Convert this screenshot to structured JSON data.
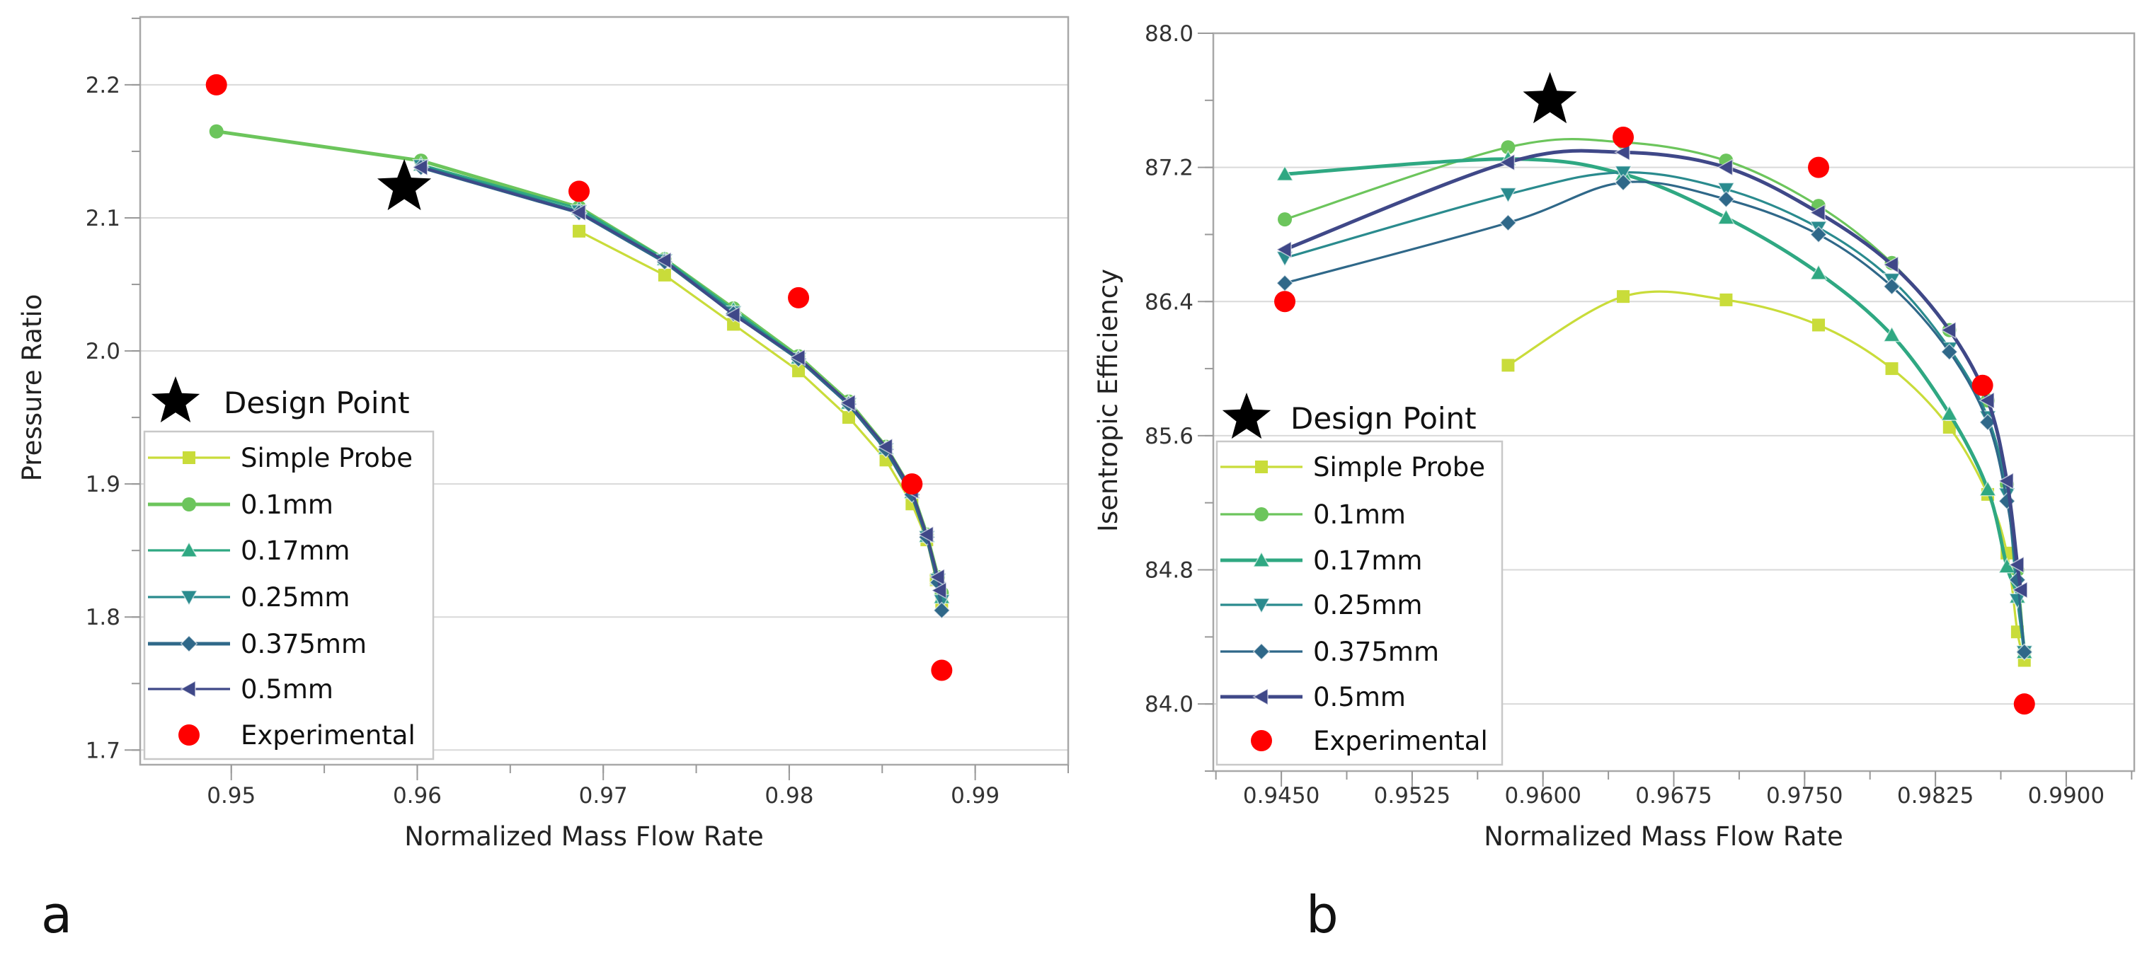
{
  "colors": {
    "Simple Probe": "#c9dc3a",
    "0.1mm": "#6cc55c",
    "0.17mm": "#2fa882",
    "0.25mm": "#2a8b8e",
    "0.375mm": "#2f6889",
    "0.5mm": "#3f4888",
    "Experimental": "#ff0000",
    "design": "#000000"
  },
  "chart_data": [
    {
      "panel_label": "a",
      "type": "line",
      "smooth": false,
      "xlabel": "Normalized Mass Flow Rate",
      "ylabel": "Pressure Ratio",
      "xlim": [
        0.9451,
        0.995
      ],
      "ylim": [
        1.689,
        2.251
      ],
      "xticks": [
        0.95,
        0.96,
        0.97,
        0.98,
        0.99
      ],
      "xtick_labels": [
        "0.95",
        "0.96",
        "0.97",
        "0.98",
        "0.99"
      ],
      "xminor": 0.005,
      "yticks": [
        1.7,
        1.8,
        1.9,
        2.0,
        2.1,
        2.2
      ],
      "ytick_labels": [
        "1.7",
        "1.8",
        "1.9",
        "2.0",
        "2.1",
        "2.2"
      ],
      "yminor": 0.05,
      "grid": "horizontal",
      "legend_position": "lower-left",
      "design_point": {
        "label": "Design Point",
        "x": 0.9593,
        "y": 2.123
      },
      "series": [
        {
          "name": "Simple Probe",
          "marker": "square",
          "bold": false,
          "x": [
            0.9687,
            0.9733,
            0.977,
            0.9805,
            0.9832,
            0.9852,
            0.9866,
            0.9874,
            0.9879,
            0.9882
          ],
          "y": [
            2.09,
            2.057,
            2.02,
            1.985,
            1.95,
            1.918,
            1.885,
            1.858,
            1.828,
            1.81
          ]
        },
        {
          "name": "0.1mm",
          "marker": "circle",
          "bold": true,
          "x": [
            0.9492,
            0.9602,
            0.9687,
            0.9733,
            0.977,
            0.9805,
            0.9832,
            0.9852,
            0.9866,
            0.9874,
            0.988,
            0.9882
          ],
          "y": [
            2.165,
            2.143,
            2.108,
            2.069,
            2.032,
            1.996,
            1.962,
            1.928,
            1.895,
            1.862,
            1.83,
            1.818
          ]
        },
        {
          "name": "0.17mm",
          "marker": "triangle-up",
          "bold": false,
          "x": [
            0.9602,
            0.9687,
            0.9733,
            0.977,
            0.9805,
            0.9832,
            0.9852,
            0.9866,
            0.9874,
            0.988,
            0.9882
          ],
          "y": [
            2.14,
            2.107,
            2.069,
            2.031,
            1.995,
            1.961,
            1.927,
            1.894,
            1.861,
            1.829,
            1.815
          ]
        },
        {
          "name": "0.25mm",
          "marker": "triangle-down",
          "bold": false,
          "x": [
            0.9602,
            0.9687,
            0.9733,
            0.977,
            0.9805,
            0.9832,
            0.9852,
            0.9866,
            0.9874,
            0.988,
            0.9882
          ],
          "y": [
            2.139,
            2.105,
            2.068,
            2.029,
            1.994,
            1.96,
            1.926,
            1.893,
            1.86,
            1.828,
            1.812
          ]
        },
        {
          "name": "0.375mm",
          "marker": "diamond",
          "bold": true,
          "x": [
            0.9602,
            0.9687,
            0.9733,
            0.977,
            0.9805,
            0.9832,
            0.9852,
            0.9866,
            0.9874,
            0.988,
            0.9882
          ],
          "y": [
            2.138,
            2.104,
            2.067,
            2.028,
            1.994,
            1.96,
            1.926,
            1.892,
            1.86,
            1.826,
            1.805
          ]
        },
        {
          "name": "0.5mm",
          "marker": "triangle-left",
          "bold": false,
          "x": [
            0.9602,
            0.9687,
            0.9733,
            0.977,
            0.9805,
            0.9832,
            0.9852,
            0.9866,
            0.9874,
            0.988,
            0.9881
          ],
          "y": [
            2.138,
            2.104,
            2.068,
            2.027,
            1.995,
            1.961,
            1.928,
            1.895,
            1.862,
            1.83,
            1.82
          ]
        },
        {
          "name": "Experimental",
          "marker": "dot",
          "bold": false,
          "line": false,
          "x": [
            0.9492,
            0.9687,
            0.9805,
            0.9866,
            0.9882
          ],
          "y": [
            2.2,
            2.12,
            2.04,
            1.9,
            1.76
          ]
        }
      ]
    },
    {
      "panel_label": "b",
      "type": "line",
      "smooth": true,
      "xlabel": "Normalized Mass Flow Rate",
      "ylabel": "Isentropic Efficiency",
      "xlim": [
        0.9411,
        0.9939
      ],
      "ylim": [
        83.6,
        88.0
      ],
      "xticks": [
        0.945,
        0.9525,
        0.96,
        0.9675,
        0.975,
        0.9825,
        0.99
      ],
      "xtick_labels": [
        "0.9450",
        "0.9525",
        "0.9600",
        "0.9675",
        "0.9750",
        "0.9825",
        "0.9900"
      ],
      "xminor": 0.00375,
      "yticks": [
        84.0,
        84.8,
        85.6,
        86.4,
        87.2,
        88.0
      ],
      "ytick_labels": [
        "84.0",
        "84.8",
        "85.6",
        "86.4",
        "87.2",
        "88.0"
      ],
      "yminor": 0.4,
      "grid": "horizontal",
      "legend_position": "lower-left",
      "design_point": {
        "label": "Design Point",
        "x": 0.9604,
        "y": 87.6
      },
      "series": [
        {
          "name": "Simple Probe",
          "marker": "square",
          "bold": false,
          "x": [
            0.958,
            0.9646,
            0.9705,
            0.9758,
            0.98,
            0.9833,
            0.9855,
            0.9866,
            0.9872,
            0.9876
          ],
          "y": [
            86.02,
            86.43,
            86.41,
            86.26,
            86.0,
            85.65,
            85.25,
            84.9,
            84.43,
            84.26
          ]
        },
        {
          "name": "0.1mm",
          "marker": "circle",
          "bold": false,
          "x": [
            0.9452,
            0.958,
            0.9646,
            0.9705,
            0.9758,
            0.98,
            0.9833,
            0.9855,
            0.9866,
            0.9872,
            0.9876
          ],
          "y": [
            86.89,
            87.32,
            87.35,
            87.24,
            86.97,
            86.63,
            86.23,
            85.81,
            85.31,
            84.8,
            84.31
          ]
        },
        {
          "name": "0.17mm",
          "marker": "triangle-up",
          "bold": true,
          "x": [
            0.9452,
            0.958,
            0.9646,
            0.9705,
            0.9758,
            0.98,
            0.9833,
            0.9855,
            0.9866,
            0.9872,
            0.9876
          ],
          "y": [
            87.16,
            87.25,
            87.16,
            86.9,
            86.57,
            86.2,
            85.73,
            85.28,
            84.82,
            84.64,
            84.31
          ]
        },
        {
          "name": "0.25mm",
          "marker": "triangle-down",
          "bold": false,
          "x": [
            0.9452,
            0.958,
            0.9646,
            0.9705,
            0.9758,
            0.98,
            0.9833,
            0.9855,
            0.9866,
            0.9872,
            0.9876
          ],
          "y": [
            86.66,
            87.04,
            87.17,
            87.07,
            86.84,
            86.53,
            86.12,
            85.71,
            85.25,
            84.62,
            84.31
          ]
        },
        {
          "name": "0.375mm",
          "marker": "diamond",
          "bold": false,
          "x": [
            0.9452,
            0.958,
            0.9646,
            0.9705,
            0.9758,
            0.98,
            0.9833,
            0.9855,
            0.9866,
            0.9872,
            0.9876
          ],
          "y": [
            86.51,
            86.87,
            87.11,
            87.01,
            86.8,
            86.49,
            86.1,
            85.68,
            85.21,
            84.74,
            84.31
          ]
        },
        {
          "name": "0.5mm",
          "marker": "triangle-left",
          "bold": true,
          "x": [
            0.9452,
            0.958,
            0.9646,
            0.9705,
            0.9758,
            0.98,
            0.9833,
            0.9855,
            0.9866,
            0.9872,
            0.9874
          ],
          "y": [
            86.71,
            87.23,
            87.29,
            87.2,
            86.93,
            86.62,
            86.23,
            85.81,
            85.33,
            84.83,
            84.68
          ]
        },
        {
          "name": "Experimental",
          "marker": "dot",
          "bold": false,
          "line": false,
          "x": [
            0.9452,
            0.9646,
            0.9758,
            0.9852,
            0.9876
          ],
          "y": [
            86.4,
            87.38,
            87.2,
            85.9,
            84.0
          ]
        }
      ]
    }
  ]
}
